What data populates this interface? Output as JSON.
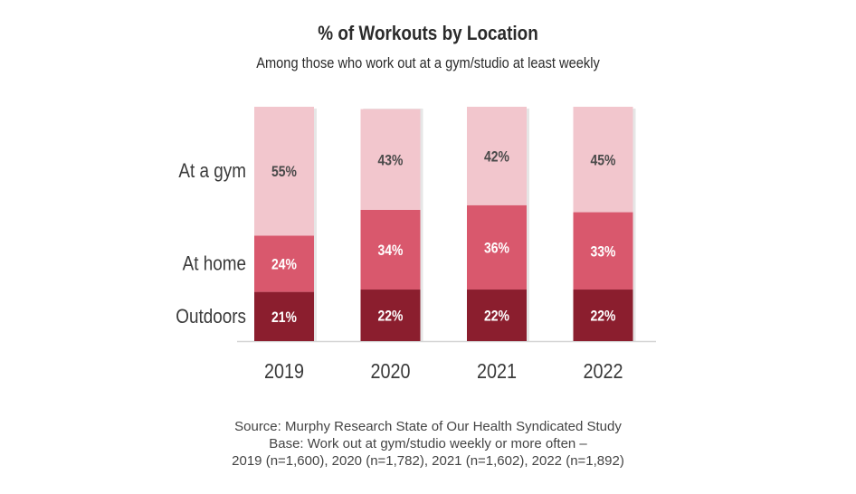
{
  "chart_data": {
    "type": "bar",
    "stacked": true,
    "title": "% of Workouts by Location",
    "subtitle": "Among those who work out at a gym/studio at least weekly",
    "categories": [
      "2019",
      "2020",
      "2021",
      "2022"
    ],
    "series": [
      {
        "name": "Outdoors",
        "values": [
          21,
          22,
          22,
          22
        ],
        "labels": [
          "21%",
          "22%",
          "22%",
          "22%"
        ],
        "color": "#8b1e2e",
        "text_color": "#ffffff"
      },
      {
        "name": "At home",
        "values": [
          24,
          34,
          36,
          33
        ],
        "labels": [
          "24%",
          "34%",
          "36%",
          "33%"
        ],
        "color": "#d9586d",
        "text_color": "#ffffff"
      },
      {
        "name": "At a gym",
        "values": [
          55,
          43,
          42,
          45
        ],
        "labels": [
          "55%",
          "43%",
          "42%",
          "45%"
        ],
        "color": "#f2c6cd",
        "text_color": "#4a4a4a"
      }
    ],
    "ylim": [
      0,
      100
    ],
    "xlabel": "",
    "ylabel": "",
    "legend": "left",
    "grid": false
  },
  "source": {
    "line1": "Source: Murphy Research State of Our Health Syndicated Study",
    "line2": "Base: Work out at gym/studio weekly or more often –",
    "line3": "2019 (n=1,600), 2020 (n=1,782), 2021 (n=1,602), 2022 (n=1,892)"
  }
}
